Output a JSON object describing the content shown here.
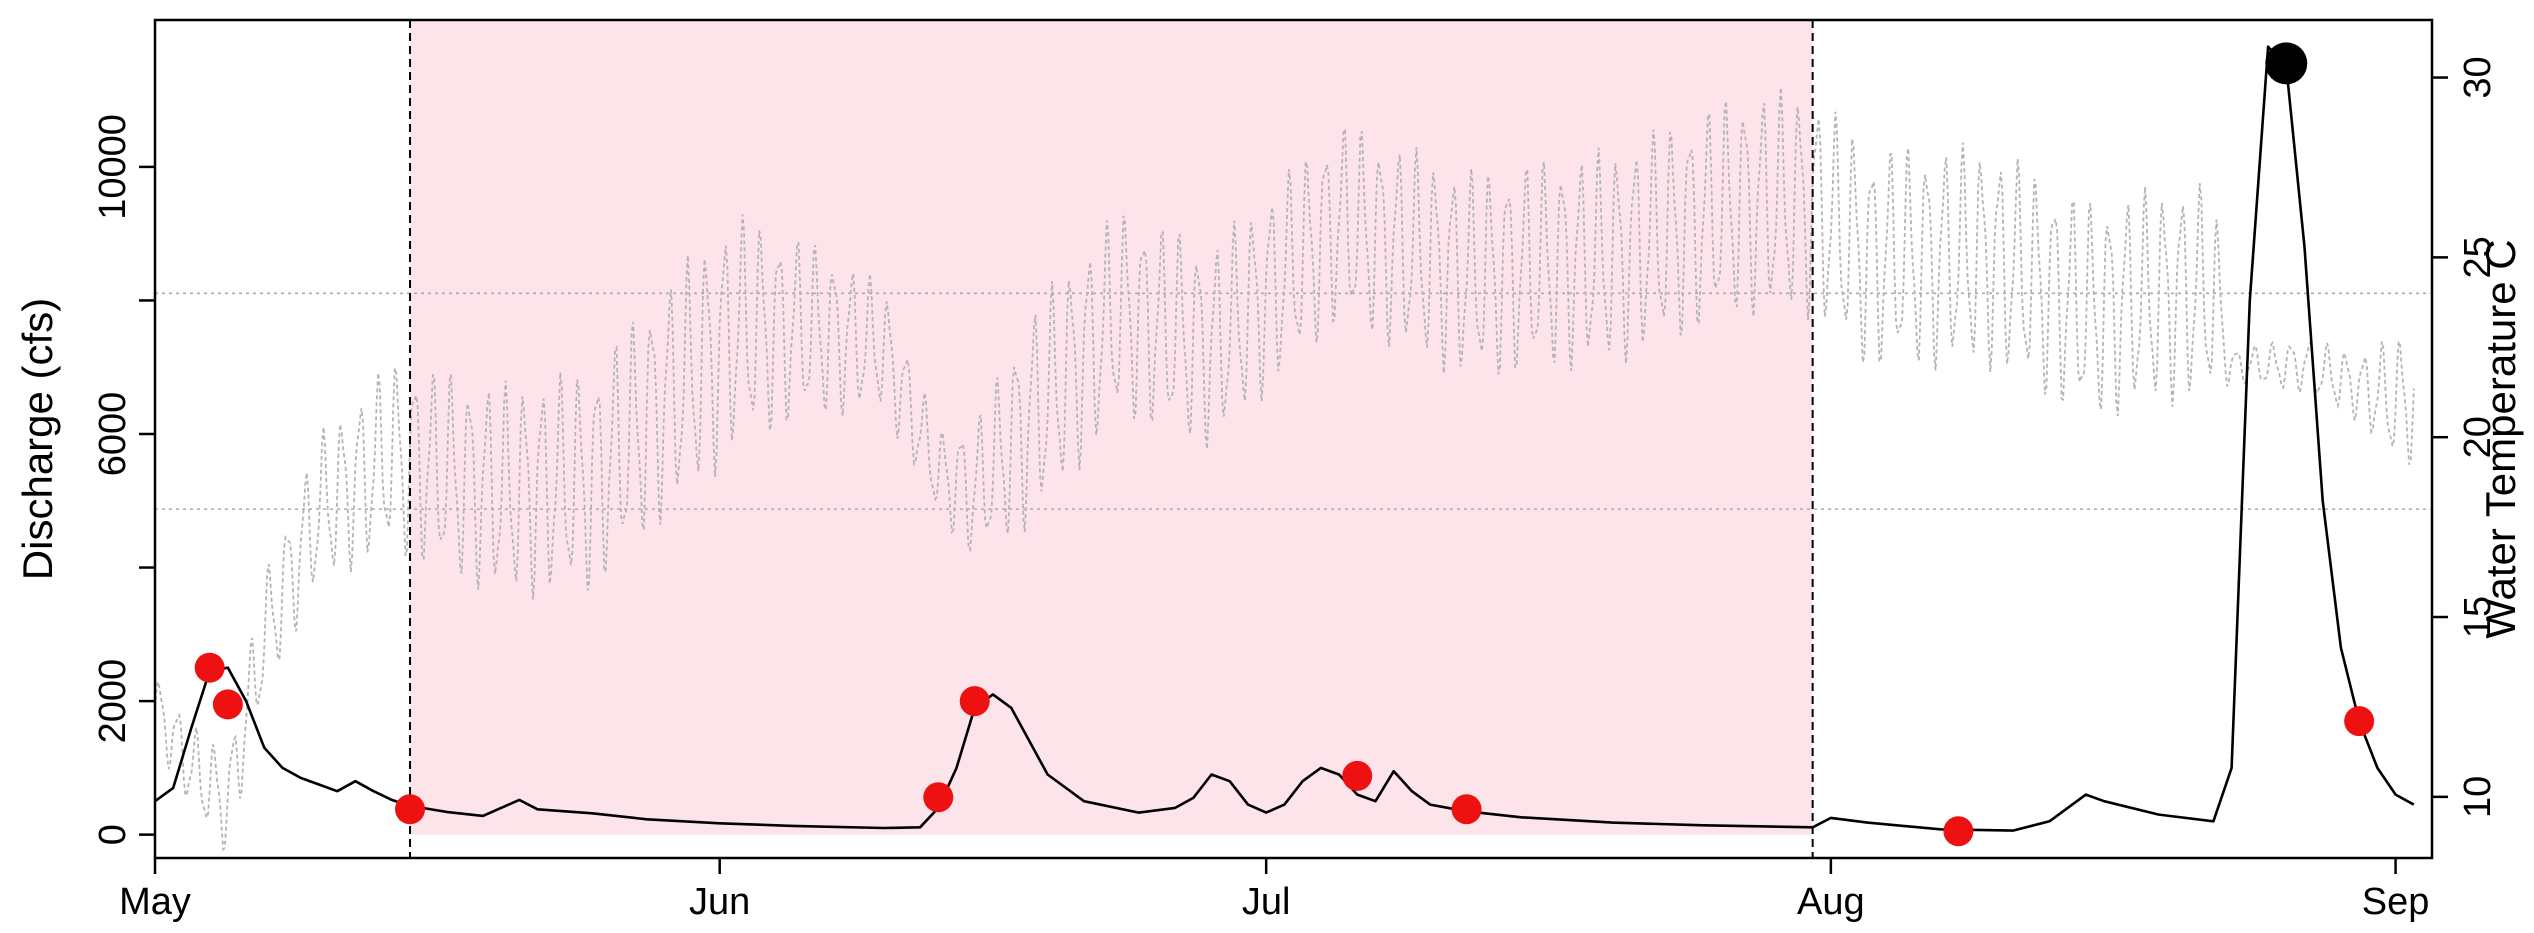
{
  "chart_data": {
    "type": "line",
    "title": "",
    "xlabel": "",
    "ylabel": "Discharge (cfs)",
    "y2label": "Water Temperature C",
    "x_range": [
      "2017-05-01",
      "2017-09-03"
    ],
    "ylim": [
      -350,
      12200
    ],
    "y2lim": [
      8.3,
      31.6
    ],
    "x_ticks": [
      {
        "date": "2017-05-01",
        "label": "May"
      },
      {
        "date": "2017-06-01",
        "label": "Jun"
      },
      {
        "date": "2017-07-01",
        "label": "Jul"
      },
      {
        "date": "2017-08-01",
        "label": "Aug"
      },
      {
        "date": "2017-09-01",
        "label": "Sep"
      }
    ],
    "y_ticks": [
      0,
      2000,
      4000,
      6000,
      8000,
      10000
    ],
    "y_tick_labels": [
      "0",
      "2000",
      "",
      "6000",
      "",
      "10000"
    ],
    "y2_ticks": [
      10,
      15,
      20,
      25,
      30
    ],
    "y2_tick_labels": [
      "10",
      "15",
      "20",
      "25",
      "30"
    ],
    "reference_lines_temperature": [
      18,
      24
    ],
    "shaded_period": {
      "start": "2017-05-15",
      "end": "2017-07-31",
      "color": "#fde4ea"
    },
    "colors": {
      "discharge": "#000000",
      "temperature": "#b4b4b4",
      "event": "#ee1111",
      "peak": "#000000"
    },
    "series": [
      {
        "axis": "left",
        "points": [
          [
            "2017-05-01",
            500
          ],
          [
            "2017-05-02",
            700
          ],
          [
            "2017-05-03",
            1600
          ],
          [
            "2017-05-04",
            2450
          ],
          [
            "2017-05-05",
            2500
          ],
          [
            "2017-05-06",
            2000
          ],
          [
            "2017-05-07",
            1300
          ],
          [
            "2017-05-08",
            1000
          ],
          [
            "2017-05-09",
            850
          ],
          [
            "2017-05-10",
            750
          ],
          [
            "2017-05-11",
            650
          ],
          [
            "2017-05-12",
            800
          ],
          [
            "2017-05-13",
            650
          ],
          [
            "2017-05-14",
            520
          ],
          [
            "2017-05-15",
            430
          ],
          [
            "2017-05-17",
            340
          ],
          [
            "2017-05-19",
            280
          ],
          [
            "2017-05-21",
            520
          ],
          [
            "2017-05-22",
            380
          ],
          [
            "2017-05-25",
            320
          ],
          [
            "2017-05-28",
            230
          ],
          [
            "2017-06-01",
            170
          ],
          [
            "2017-06-05",
            130
          ],
          [
            "2017-06-10",
            100
          ],
          [
            "2017-06-12",
            110
          ],
          [
            "2017-06-13",
            400
          ],
          [
            "2017-06-14",
            1000
          ],
          [
            "2017-06-15",
            1900
          ],
          [
            "2017-06-16",
            2100
          ],
          [
            "2017-06-17",
            1900
          ],
          [
            "2017-06-19",
            900
          ],
          [
            "2017-06-21",
            500
          ],
          [
            "2017-06-24",
            330
          ],
          [
            "2017-06-26",
            400
          ],
          [
            "2017-06-27",
            550
          ],
          [
            "2017-06-28",
            900
          ],
          [
            "2017-06-29",
            800
          ],
          [
            "2017-06-30",
            450
          ],
          [
            "2017-07-01",
            330
          ],
          [
            "2017-07-02",
            450
          ],
          [
            "2017-07-03",
            800
          ],
          [
            "2017-07-04",
            1000
          ],
          [
            "2017-07-05",
            900
          ],
          [
            "2017-07-06",
            600
          ],
          [
            "2017-07-07",
            500
          ],
          [
            "2017-07-08",
            950
          ],
          [
            "2017-07-09",
            650
          ],
          [
            "2017-07-10",
            450
          ],
          [
            "2017-07-12",
            350
          ],
          [
            "2017-07-15",
            260
          ],
          [
            "2017-07-20",
            180
          ],
          [
            "2017-07-25",
            140
          ],
          [
            "2017-07-31",
            110
          ],
          [
            "2017-08-01",
            250
          ],
          [
            "2017-08-03",
            180
          ],
          [
            "2017-08-07",
            80
          ],
          [
            "2017-08-11",
            60
          ],
          [
            "2017-08-13",
            200
          ],
          [
            "2017-08-14",
            400
          ],
          [
            "2017-08-15",
            600
          ],
          [
            "2017-08-16",
            500
          ],
          [
            "2017-08-19",
            300
          ],
          [
            "2017-08-22",
            200
          ],
          [
            "2017-08-23",
            1000
          ],
          [
            "2017-08-24",
            8000
          ],
          [
            "2017-08-25",
            11800
          ],
          [
            "2017-08-26",
            11500
          ],
          [
            "2017-08-27",
            8800
          ],
          [
            "2017-08-28",
            5000
          ],
          [
            "2017-08-29",
            2800
          ],
          [
            "2017-08-30",
            1700
          ],
          [
            "2017-08-31",
            1000
          ],
          [
            "2017-09-01",
            600
          ],
          [
            "2017-09-02",
            450
          ]
        ]
      },
      {
        "axis": "right",
        "style": "dotted",
        "base": [
          [
            "2017-05-01",
            12.5
          ],
          [
            "2017-05-03",
            10.8
          ],
          [
            "2017-05-05",
            9.8
          ],
          [
            "2017-05-07",
            14.5
          ],
          [
            "2017-05-10",
            18
          ],
          [
            "2017-05-14",
            19.5
          ],
          [
            "2017-05-20",
            18.5
          ],
          [
            "2017-05-25",
            18.8
          ],
          [
            "2017-05-28",
            20.5
          ],
          [
            "2017-06-02",
            23
          ],
          [
            "2017-06-06",
            23
          ],
          [
            "2017-06-10",
            22.5
          ],
          [
            "2017-06-13",
            19
          ],
          [
            "2017-06-15",
            18.5
          ],
          [
            "2017-06-18",
            20.5
          ],
          [
            "2017-06-23",
            23.5
          ],
          [
            "2017-06-28",
            22.5
          ],
          [
            "2017-07-02",
            24.5
          ],
          [
            "2017-07-05",
            26
          ],
          [
            "2017-07-12",
            24.5
          ],
          [
            "2017-07-20",
            25
          ],
          [
            "2017-07-27",
            26.5
          ],
          [
            "2017-07-31",
            26.5
          ],
          [
            "2017-08-03",
            25
          ],
          [
            "2017-08-10",
            25
          ],
          [
            "2017-08-15",
            23.5
          ],
          [
            "2017-08-20",
            24
          ],
          [
            "2017-08-22",
            24
          ],
          [
            "2017-08-23",
            22
          ],
          [
            "2017-08-27",
            22
          ],
          [
            "2017-09-01",
            21
          ]
        ],
        "amplitude": [
          [
            "2017-05-01",
            0.8
          ],
          [
            "2017-05-08",
            1.5
          ],
          [
            "2017-05-15",
            2.3
          ],
          [
            "2017-06-01",
            2.8
          ],
          [
            "2017-06-13",
            1.0
          ],
          [
            "2017-06-18",
            2.5
          ],
          [
            "2017-07-01",
            2.3
          ],
          [
            "2017-07-31",
            2.6
          ],
          [
            "2017-08-22",
            2.5
          ],
          [
            "2017-08-23",
            0.4
          ],
          [
            "2017-08-30",
            0.8
          ],
          [
            "2017-09-01",
            1.5
          ]
        ]
      },
      {
        "type": "scatter",
        "axis": "left",
        "points": [
          [
            "2017-05-04",
            2500
          ],
          [
            "2017-05-05",
            1950
          ],
          [
            "2017-05-15",
            380
          ],
          [
            "2017-06-13",
            560
          ],
          [
            "2017-06-15",
            2000
          ],
          [
            "2017-07-06",
            880
          ],
          [
            "2017-07-12",
            380
          ],
          [
            "2017-08-08",
            50
          ],
          [
            "2017-08-30",
            1700
          ]
        ]
      },
      {
        "type": "scatter",
        "axis": "left",
        "points": [
          [
            "2017-08-26",
            11550
          ]
        ]
      }
    ]
  }
}
